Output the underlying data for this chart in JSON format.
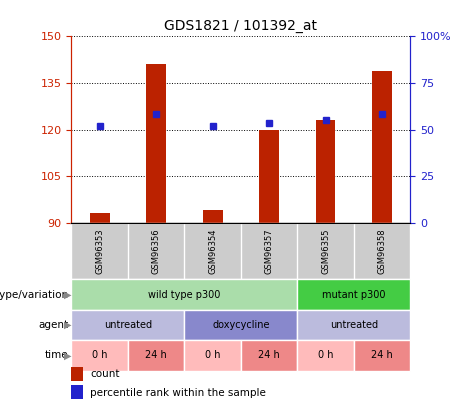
{
  "title": "GDS1821 / 101392_at",
  "samples": [
    "GSM96353",
    "GSM96356",
    "GSM96354",
    "GSM96357",
    "GSM96355",
    "GSM96358"
  ],
  "bar_values": [
    93,
    141,
    94,
    120,
    123,
    139
  ],
  "percentile_values": [
    121,
    125,
    121,
    122,
    123,
    125
  ],
  "bar_color": "#bb2200",
  "dot_color": "#2222cc",
  "ylim_left": [
    90,
    150
  ],
  "ylim_right": [
    0,
    100
  ],
  "yticks_left": [
    90,
    105,
    120,
    135,
    150
  ],
  "yticks_right": [
    0,
    25,
    50,
    75,
    100
  ],
  "background_color": "#ffffff",
  "sample_bg_color": "#cccccc",
  "genotype_row": [
    {
      "label": "wild type p300",
      "span": [
        0,
        4
      ],
      "color": "#aaddaa"
    },
    {
      "label": "mutant p300",
      "span": [
        4,
        6
      ],
      "color": "#44cc44"
    }
  ],
  "agent_row": [
    {
      "label": "untreated",
      "span": [
        0,
        2
      ],
      "color": "#bbbbdd"
    },
    {
      "label": "doxycycline",
      "span": [
        2,
        4
      ],
      "color": "#8888cc"
    },
    {
      "label": "untreated",
      "span": [
        4,
        6
      ],
      "color": "#bbbbdd"
    }
  ],
  "time_row": [
    {
      "label": "0 h",
      "span": [
        0,
        1
      ],
      "color": "#ffbbbb"
    },
    {
      "label": "24 h",
      "span": [
        1,
        2
      ],
      "color": "#ee8888"
    },
    {
      "label": "0 h",
      "span": [
        2,
        3
      ],
      "color": "#ffbbbb"
    },
    {
      "label": "24 h",
      "span": [
        3,
        4
      ],
      "color": "#ee8888"
    },
    {
      "label": "0 h",
      "span": [
        4,
        5
      ],
      "color": "#ffbbbb"
    },
    {
      "label": "24 h",
      "span": [
        5,
        6
      ],
      "color": "#ee8888"
    }
  ],
  "row_label_names": [
    "genotype/variation",
    "agent",
    "time"
  ],
  "legend_items": [
    {
      "label": "count",
      "color": "#bb2200"
    },
    {
      "label": "percentile rank within the sample",
      "color": "#2222cc"
    }
  ]
}
